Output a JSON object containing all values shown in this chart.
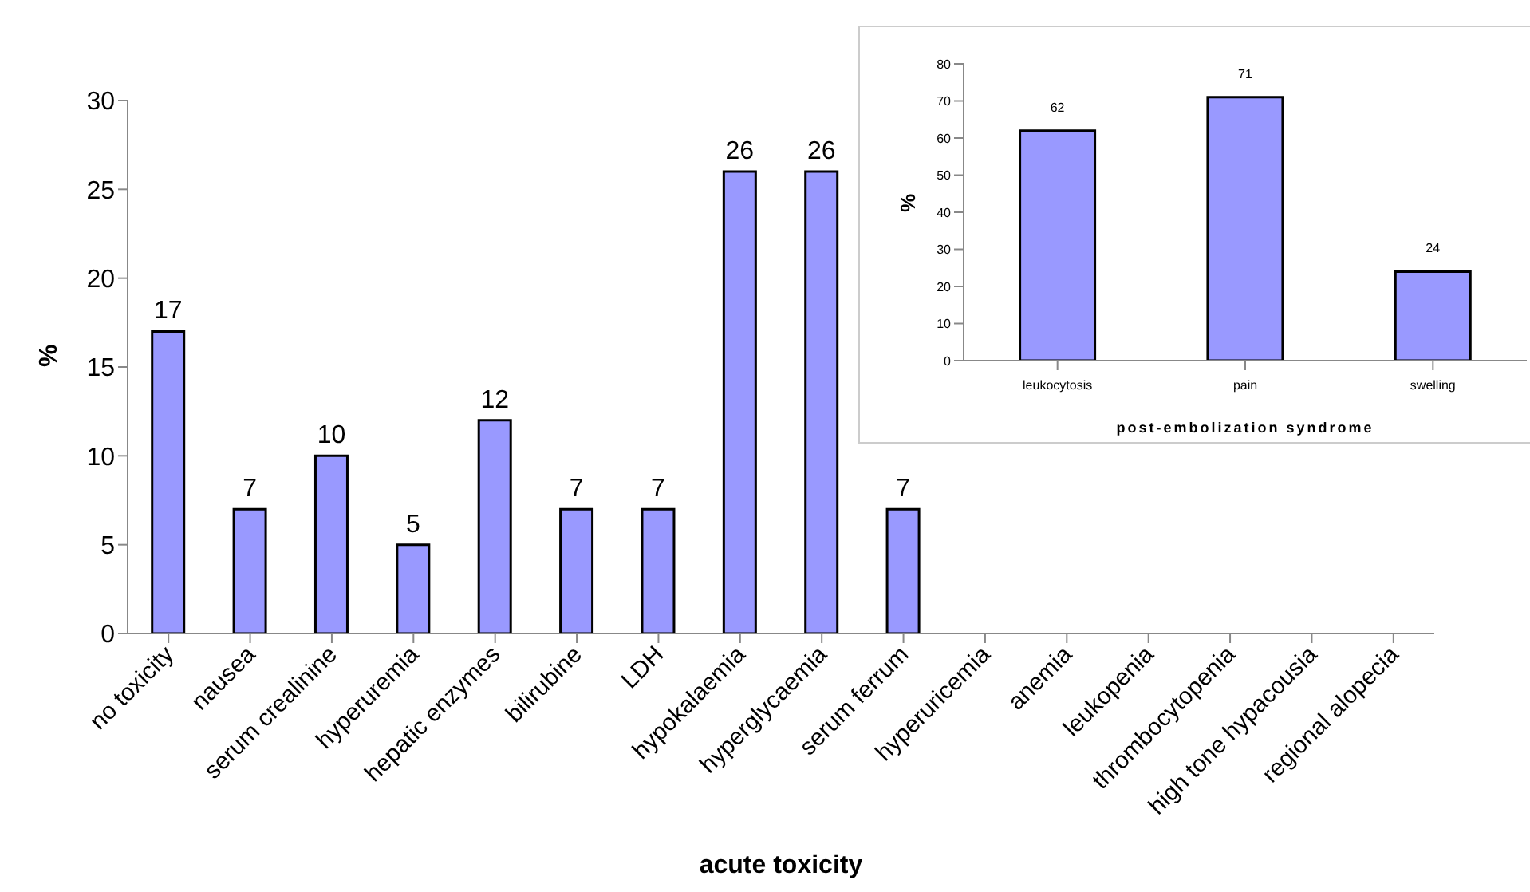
{
  "chart_data": [
    {
      "type": "bar",
      "xlabel": "acute toxicity",
      "ylabel": "%",
      "categories": [
        "no toxicity",
        "nausea",
        "serum crealinine",
        "hyperuremia",
        "hepatic enzymes",
        "bilirubine",
        "LDH",
        "hypokalaemia",
        "hyperglycaemia",
        "serum ferrum",
        "hyperuricemia",
        "anemia",
        "leukopenia",
        "thrombocytopenia",
        "high tone hypacousia",
        "regional alopecia"
      ],
      "values": [
        17,
        7,
        10,
        5,
        12,
        7,
        7,
        26,
        26,
        7,
        null,
        null,
        null,
        null,
        null,
        null
      ],
      "color": "#9999ff",
      "ylim": [
        0,
        30
      ],
      "yticks": [
        0,
        5,
        10,
        15,
        20,
        25,
        30
      ],
      "grid": false,
      "legend": false,
      "data_labels": true
    },
    {
      "type": "bar",
      "xlabel": "post-embolization syndrome",
      "ylabel": "%",
      "categories": [
        "leukocytosis",
        "pain",
        "swelling"
      ],
      "values": [
        62,
        71,
        24
      ],
      "color": "#9999ff",
      "ylim": [
        0,
        80
      ],
      "yticks": [
        0,
        10,
        20,
        30,
        40,
        50,
        60,
        70,
        80
      ],
      "grid": false,
      "legend": false,
      "data_labels": true
    }
  ]
}
